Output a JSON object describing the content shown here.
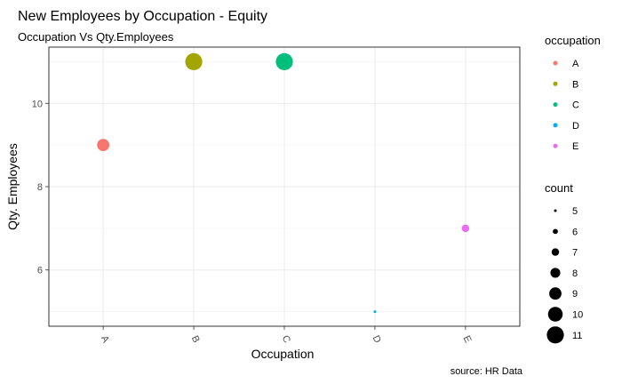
{
  "chart_data": {
    "type": "scatter",
    "title": "New Employees by Occupation - Equity",
    "subtitle": "Occupation Vs Qty.Employees",
    "xlabel": "Occupation",
    "ylabel": "Qty. Employees",
    "caption": "source: HR Data",
    "categories": [
      "A",
      "B",
      "C",
      "D",
      "E"
    ],
    "ylim": [
      4.65,
      11.35
    ],
    "yticks": [
      6,
      8,
      10
    ],
    "points": [
      {
        "x": "A",
        "y": 9,
        "count": 9,
        "color": "#F8766D"
      },
      {
        "x": "B",
        "y": 11,
        "count": 11,
        "color": "#A3A500"
      },
      {
        "x": "C",
        "y": 11,
        "count": 11,
        "color": "#00BF7D"
      },
      {
        "x": "D",
        "y": 5,
        "count": 5,
        "color": "#00B0F6"
      },
      {
        "x": "E",
        "y": 7,
        "count": 7,
        "color": "#E76BF3"
      }
    ],
    "grid": true,
    "legend_placement": "right",
    "color_legend": {
      "title": "occupation",
      "items": [
        {
          "label": "A",
          "color": "#F8766D"
        },
        {
          "label": "B",
          "color": "#A3A500"
        },
        {
          "label": "C",
          "color": "#00BF7D"
        },
        {
          "label": "D",
          "color": "#00B0F6"
        },
        {
          "label": "E",
          "color": "#E76BF3"
        }
      ]
    },
    "size_legend": {
      "title": "count",
      "items": [
        "5",
        "6",
        "7",
        "8",
        "9",
        "10",
        "11"
      ]
    }
  }
}
